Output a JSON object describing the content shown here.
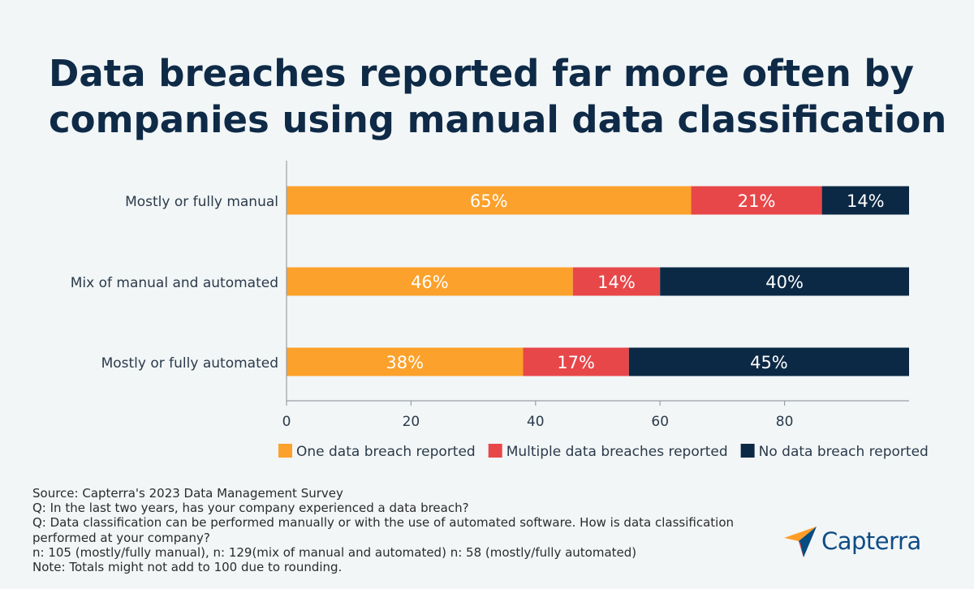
{
  "chart_data": {
    "type": "bar",
    "orientation": "horizontal",
    "stacked": true,
    "title": "Data breaches reported far more often by companies using manual data classification",
    "title_lines": [
      "Data breaches reported far more often by",
      "companies using manual data classification"
    ],
    "categories": [
      "Mostly or fully manual",
      "Mix of manual and automated",
      "Mostly or fully automated"
    ],
    "series": [
      {
        "name": "One data breach reported",
        "values": [
          65,
          46,
          38
        ],
        "labels": [
          "65%",
          "46%",
          "38%"
        ],
        "color": "#fca12b"
      },
      {
        "name": "Multiple data breaches reported",
        "values": [
          21,
          14,
          17
        ],
        "labels": [
          "21%",
          "14%",
          "17%"
        ],
        "color": "#e8474a"
      },
      {
        "name": "No data breach reported",
        "values": [
          14,
          40,
          45
        ],
        "labels": [
          "14%",
          "40%",
          "45%"
        ],
        "color": "#0b2944"
      }
    ],
    "xlim": [
      0,
      100
    ],
    "xticks": [
      0,
      20,
      40,
      60,
      80
    ],
    "xlabel": "",
    "ylabel": "",
    "grid": false,
    "legend_position": "bottom"
  },
  "footer": {
    "lines": [
      "Source: Capterra's 2023 Data Management Survey",
      "Q: In the last two years, has your company experienced a data breach?",
      "Q: Data classification can be performed manually or with the use of automated software. How is data classification performed at your company?",
      "n: 105 (mostly/fully manual), n: 129(mix of manual and automated) n: 58 (mostly/fully automated)",
      "Note: Totals might not add to 100 due to rounding."
    ]
  },
  "brand": {
    "name": "Capterra",
    "text_color": "#0e4c86",
    "logo_colors": [
      "#ff9d28",
      "#68c5ed",
      "#044d80",
      "#e54747"
    ]
  },
  "colors": {
    "background": "#f2f6f7",
    "title": "#0e2a47",
    "axis": "#9aa0a6",
    "label_text": "#2b3a4a",
    "bar_label": "#ffffff"
  }
}
